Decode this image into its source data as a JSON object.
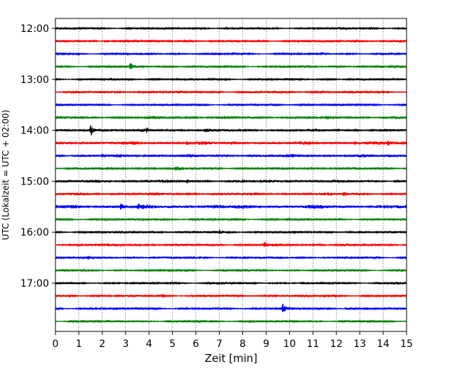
{
  "chart_data": {
    "type": "line",
    "title": "",
    "xlabel": "Zeit  [min]",
    "ylabel": "UTC (Lokalzeit = UTC + 02:00)",
    "xlim": [
      0,
      15
    ],
    "x_ticks": [
      0,
      1,
      2,
      3,
      4,
      5,
      6,
      7,
      8,
      9,
      10,
      11,
      12,
      13,
      14,
      15
    ],
    "x_tick_labels": [
      "0",
      "1",
      "2",
      "3",
      "4",
      "5",
      "6",
      "7",
      "8",
      "9",
      "10",
      "11",
      "12",
      "13",
      "14",
      "15"
    ],
    "y_tick_labels": [
      "12:00",
      "13:00",
      "14:00",
      "15:00",
      "16:00",
      "17:00"
    ],
    "row_interval_minutes": 15,
    "grid": "vertical dotted lines at each minute",
    "color_cycle": [
      "#000000",
      "#ff0000",
      "#0000ff",
      "#008000"
    ],
    "traces": [
      {
        "start": "12:00",
        "color": "#000000",
        "amplitude": 1.0,
        "events": []
      },
      {
        "start": "12:15",
        "color": "#ff0000",
        "amplitude": 1.1,
        "events": [
          {
            "t": 2.1,
            "a": 2.0
          }
        ]
      },
      {
        "start": "12:30",
        "color": "#0000ff",
        "amplitude": 0.9,
        "events": []
      },
      {
        "start": "12:45",
        "color": "#008000",
        "amplitude": 1.0,
        "events": [
          {
            "t": 3.2,
            "a": 4.5
          }
        ]
      },
      {
        "start": "13:00",
        "color": "#000000",
        "amplitude": 1.0,
        "events": []
      },
      {
        "start": "13:15",
        "color": "#ff0000",
        "amplitude": 1.1,
        "events": [
          {
            "t": 14.0,
            "a": 1.8
          }
        ]
      },
      {
        "start": "13:30",
        "color": "#0000ff",
        "amplitude": 1.0,
        "events": []
      },
      {
        "start": "13:45",
        "color": "#008000",
        "amplitude": 1.3,
        "events": [
          {
            "t": 6.5,
            "a": 1.6
          }
        ]
      },
      {
        "start": "14:00",
        "color": "#000000",
        "amplitude": 1.3,
        "events": [
          {
            "t": 1.5,
            "a": 9.5
          },
          {
            "t": 3.9,
            "a": 2.0
          },
          {
            "t": 6.4,
            "a": 2.0
          }
        ]
      },
      {
        "start": "14:15",
        "color": "#ff0000",
        "amplitude": 1.5,
        "events": [
          {
            "t": 1.1,
            "a": 2.5
          },
          {
            "t": 5.6,
            "a": 2.5
          },
          {
            "t": 12.8,
            "a": 3.0
          },
          {
            "t": 14.2,
            "a": 3.0
          }
        ]
      },
      {
        "start": "14:30",
        "color": "#0000ff",
        "amplitude": 1.4,
        "events": [
          {
            "t": 2.0,
            "a": 2.0
          }
        ]
      },
      {
        "start": "14:45",
        "color": "#008000",
        "amplitude": 1.2,
        "events": [
          {
            "t": 5.1,
            "a": 1.8
          }
        ]
      },
      {
        "start": "15:00",
        "color": "#000000",
        "amplitude": 1.3,
        "events": [
          {
            "t": 5.6,
            "a": 2.2
          },
          {
            "t": 8.0,
            "a": 2.0
          }
        ]
      },
      {
        "start": "15:15",
        "color": "#ff0000",
        "amplitude": 1.3,
        "events": [
          {
            "t": 12.3,
            "a": 2.5
          }
        ]
      },
      {
        "start": "15:30",
        "color": "#0000ff",
        "amplitude": 1.7,
        "events": [
          {
            "t": 2.8,
            "a": 4.5
          },
          {
            "t": 3.5,
            "a": 3.0
          },
          {
            "t": 5.6,
            "a": 2.0
          }
        ]
      },
      {
        "start": "15:45",
        "color": "#008000",
        "amplitude": 1.0,
        "events": []
      },
      {
        "start": "16:00",
        "color": "#000000",
        "amplitude": 1.1,
        "events": [
          {
            "t": 7.0,
            "a": 1.8
          }
        ]
      },
      {
        "start": "16:15",
        "color": "#ff0000",
        "amplitude": 1.2,
        "events": [
          {
            "t": 8.9,
            "a": 3.5
          }
        ]
      },
      {
        "start": "16:30",
        "color": "#0000ff",
        "amplitude": 1.0,
        "events": [
          {
            "t": 1.4,
            "a": 1.6
          }
        ]
      },
      {
        "start": "16:45",
        "color": "#008000",
        "amplitude": 0.9,
        "events": []
      },
      {
        "start": "17:00",
        "color": "#000000",
        "amplitude": 0.9,
        "events": []
      },
      {
        "start": "17:15",
        "color": "#ff0000",
        "amplitude": 1.0,
        "events": [
          {
            "t": 4.6,
            "a": 1.6
          }
        ]
      },
      {
        "start": "17:30",
        "color": "#0000ff",
        "amplitude": 1.0,
        "events": [
          {
            "t": 3.4,
            "a": 2.0
          },
          {
            "t": 9.7,
            "a": 7.0
          },
          {
            "t": 12.4,
            "a": 2.5
          }
        ]
      },
      {
        "start": "17:45",
        "color": "#008000",
        "amplitude": 0.9,
        "events": []
      }
    ]
  }
}
